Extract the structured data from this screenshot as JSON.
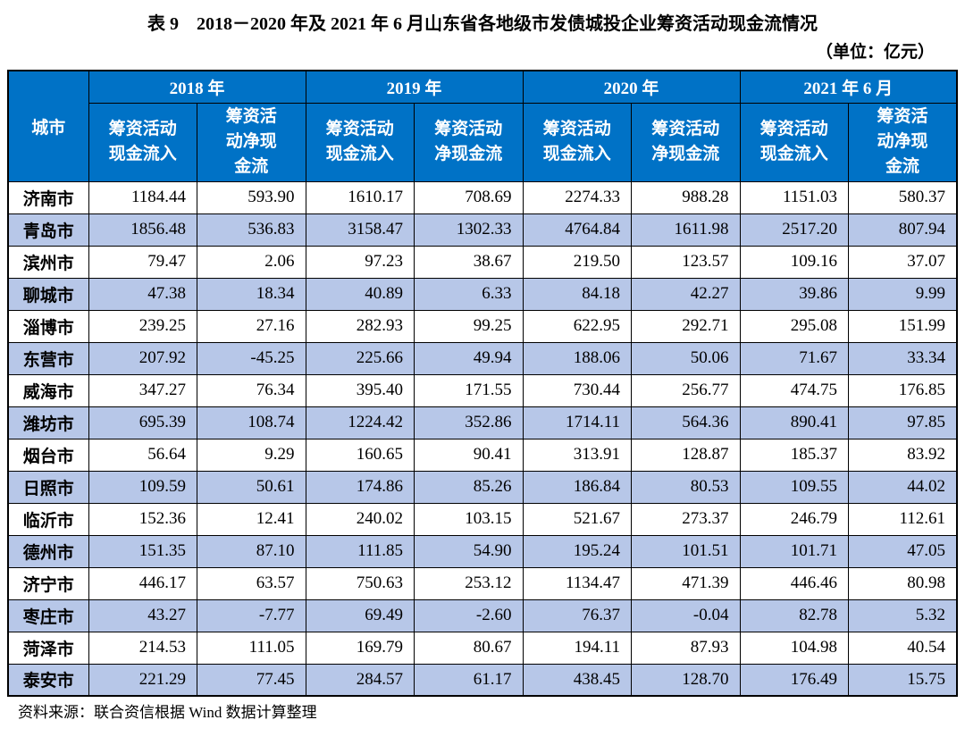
{
  "title": "表 9　2018－2020 年及 2021 年 6 月山东省各地级市发债城投企业筹资活动现金流情况",
  "unit_note": "（单位：亿元）",
  "source_note": "资料来源：联合资信根据 Wind 数据计算整理",
  "colors": {
    "header_bg": "#0072C6",
    "header_text": "#FFFFFF",
    "alt_row_bg": "#B7C7E8",
    "border": "#000000"
  },
  "table": {
    "city_header": "城市",
    "year_groups": [
      {
        "label": "2018 年",
        "sub_headers": [
          "筹资活动\n现金流入",
          "筹资活\n动净现\n金流"
        ]
      },
      {
        "label": "2019 年",
        "sub_headers": [
          "筹资活动\n现金流入",
          "筹资活动\n净现金流"
        ]
      },
      {
        "label": "2020 年",
        "sub_headers": [
          "筹资活动\n现金流入",
          "筹资活动\n净现金流"
        ]
      },
      {
        "label": "2021 年 6 月",
        "sub_headers": [
          "筹资活动\n现金流入",
          "筹资活\n动净现\n金流"
        ]
      }
    ],
    "rows": [
      {
        "city": "济南市",
        "values": [
          "1184.44",
          "593.90",
          "1610.17",
          "708.69",
          "2274.33",
          "988.28",
          "1151.03",
          "580.37"
        ]
      },
      {
        "city": "青岛市",
        "values": [
          "1856.48",
          "536.83",
          "3158.47",
          "1302.33",
          "4764.84",
          "1611.98",
          "2517.20",
          "807.94"
        ]
      },
      {
        "city": "滨州市",
        "values": [
          "79.47",
          "2.06",
          "97.23",
          "38.67",
          "219.50",
          "123.57",
          "109.16",
          "37.07"
        ]
      },
      {
        "city": "聊城市",
        "values": [
          "47.38",
          "18.34",
          "40.89",
          "6.33",
          "84.18",
          "42.27",
          "39.86",
          "9.99"
        ]
      },
      {
        "city": "淄博市",
        "values": [
          "239.25",
          "27.16",
          "282.93",
          "99.25",
          "622.95",
          "292.71",
          "295.08",
          "151.99"
        ]
      },
      {
        "city": "东营市",
        "values": [
          "207.92",
          "-45.25",
          "225.66",
          "49.94",
          "188.06",
          "50.06",
          "71.67",
          "33.34"
        ]
      },
      {
        "city": "威海市",
        "values": [
          "347.27",
          "76.34",
          "395.40",
          "171.55",
          "730.44",
          "256.77",
          "474.75",
          "176.85"
        ]
      },
      {
        "city": "潍坊市",
        "values": [
          "695.39",
          "108.74",
          "1224.42",
          "352.86",
          "1714.11",
          "564.36",
          "890.41",
          "97.85"
        ]
      },
      {
        "city": "烟台市",
        "values": [
          "56.64",
          "9.29",
          "160.65",
          "90.41",
          "313.91",
          "128.87",
          "185.37",
          "83.92"
        ]
      },
      {
        "city": "日照市",
        "values": [
          "109.59",
          "50.61",
          "174.86",
          "85.26",
          "186.84",
          "80.53",
          "109.55",
          "44.02"
        ]
      },
      {
        "city": "临沂市",
        "values": [
          "152.36",
          "12.41",
          "240.02",
          "103.15",
          "521.67",
          "273.37",
          "246.79",
          "112.61"
        ]
      },
      {
        "city": "德州市",
        "values": [
          "151.35",
          "87.10",
          "111.85",
          "54.90",
          "195.24",
          "101.51",
          "101.71",
          "47.05"
        ]
      },
      {
        "city": "济宁市",
        "values": [
          "446.17",
          "63.57",
          "750.63",
          "253.12",
          "1134.47",
          "471.39",
          "446.46",
          "80.98"
        ]
      },
      {
        "city": "枣庄市",
        "values": [
          "43.27",
          "-7.77",
          "69.49",
          "-2.60",
          "76.37",
          "-0.04",
          "82.78",
          "5.32"
        ]
      },
      {
        "city": "菏泽市",
        "values": [
          "214.53",
          "111.05",
          "169.79",
          "80.67",
          "194.11",
          "87.93",
          "104.98",
          "40.54"
        ]
      },
      {
        "city": "泰安市",
        "values": [
          "221.29",
          "77.45",
          "284.57",
          "61.17",
          "438.45",
          "128.70",
          "176.49",
          "15.75"
        ]
      }
    ]
  }
}
